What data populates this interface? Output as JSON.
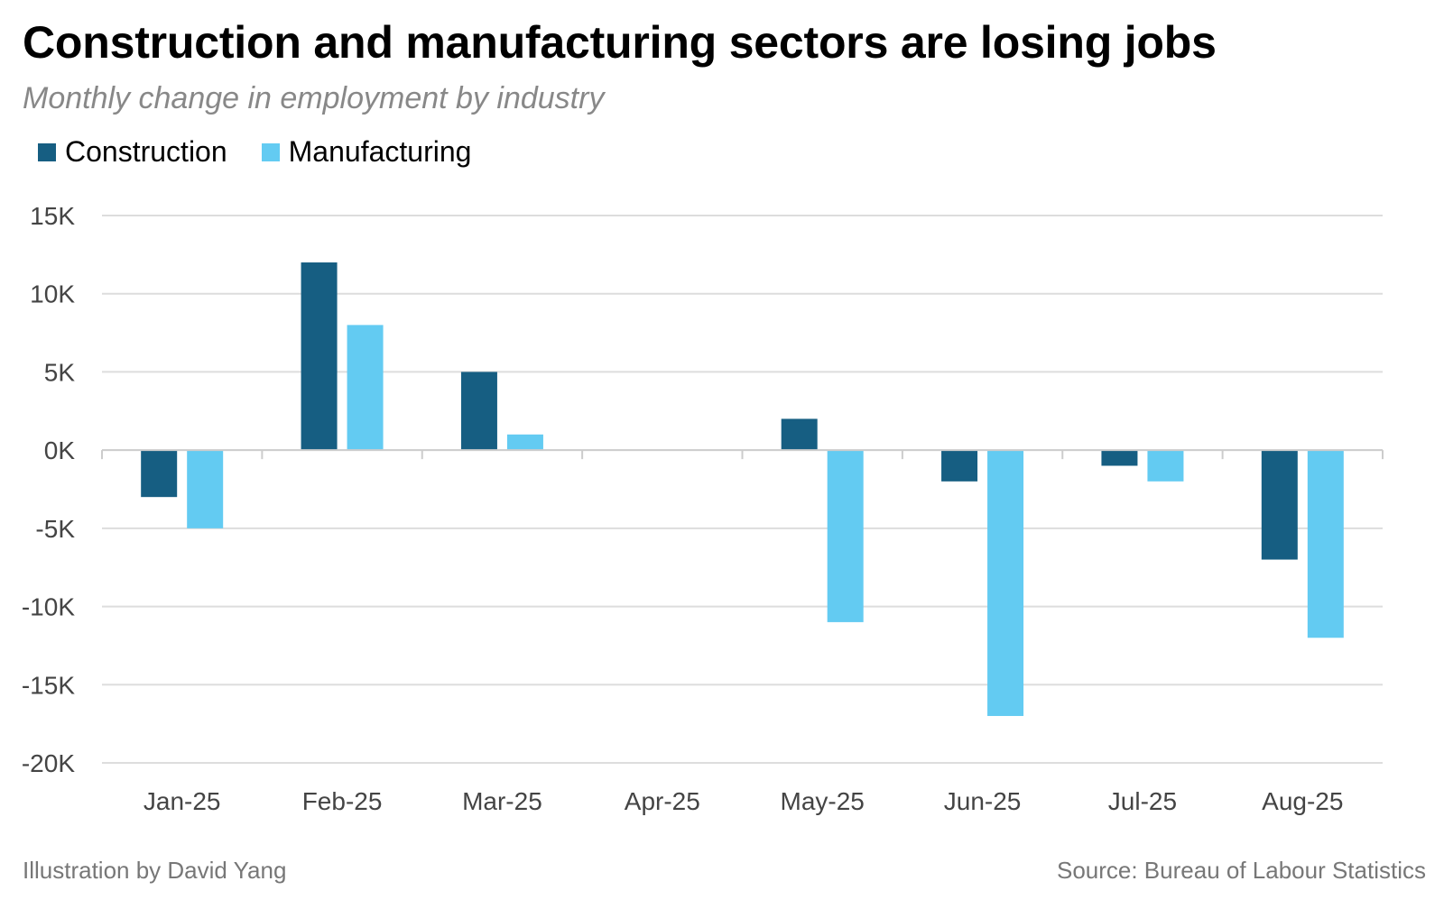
{
  "title": "Construction and manufacturing sectors are losing jobs",
  "subtitle": "Monthly change in employment by industry",
  "footer": {
    "credit": "Illustration by David Yang",
    "source": "Source: Bureau of Labour Statistics"
  },
  "colors": {
    "construction": "#165e82",
    "manufacturing": "#63cbf2",
    "gridline": "#dddddd",
    "zeroline": "#cccccc"
  },
  "chart_data": {
    "type": "bar",
    "title": "Construction and manufacturing sectors are losing jobs",
    "subtitle": "Monthly change in employment by industry",
    "categories": [
      "Jan-25",
      "Feb-25",
      "Mar-25",
      "Apr-25",
      "May-25",
      "Jun-25",
      "Jul-25",
      "Aug-25"
    ],
    "series": [
      {
        "name": "Construction",
        "values": [
          -3000,
          12000,
          5000,
          0,
          2000,
          -2000,
          -1000,
          -7000
        ]
      },
      {
        "name": "Manufacturing",
        "values": [
          -5000,
          8000,
          1000,
          0,
          -11000,
          -17000,
          -2000,
          -12000
        ]
      }
    ],
    "ylim": [
      -20000,
      15000
    ],
    "yticks": [
      15000,
      10000,
      5000,
      0,
      -5000,
      -10000,
      -15000,
      -20000
    ],
    "ytick_labels": [
      "15K",
      "10K",
      "5K",
      "0K",
      "-5K",
      "-10K",
      "-15K",
      "-20K"
    ],
    "xlabel": "",
    "ylabel": "",
    "grid": true,
    "legend": "top-left"
  }
}
